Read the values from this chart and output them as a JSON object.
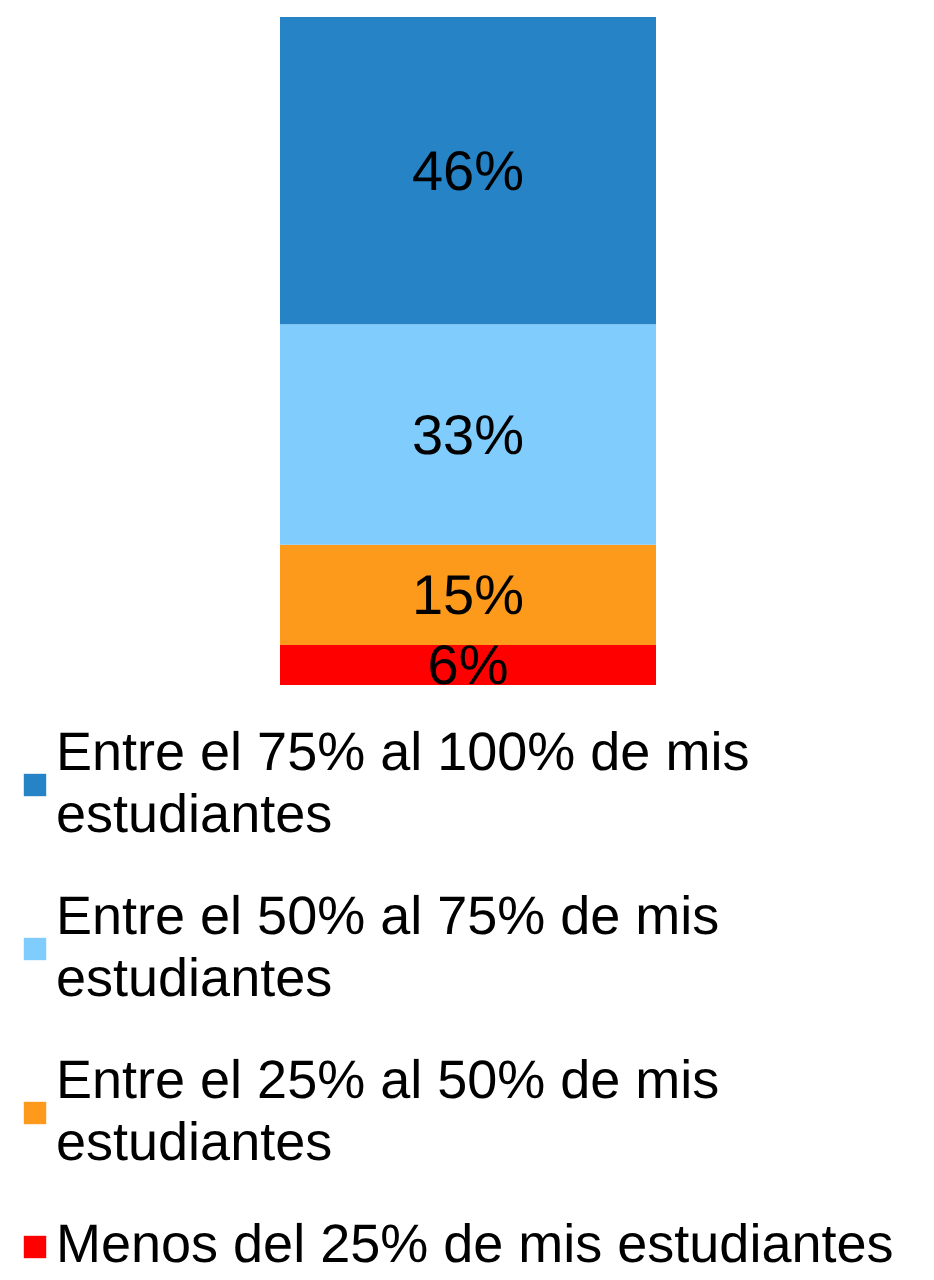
{
  "chart_data": {
    "type": "bar",
    "stacked": true,
    "categories": [
      null
    ],
    "legend": "bottom",
    "data_labels": true,
    "series": [
      {
        "name": "Menos del 25% de mis estudiantes",
        "color": "#fe0000",
        "values": [
          6
        ],
        "value_labels": [
          "6%"
        ]
      },
      {
        "name": "Entre el 25% al 50% de mis estudiantes",
        "color": "#fe9a1b",
        "values": [
          15
        ],
        "value_labels": [
          "15%"
        ]
      },
      {
        "name": "Entre el 50% al 75% de mis estudiantes",
        "color": "#7fccfd",
        "values": [
          33
        ],
        "value_labels": [
          "33%"
        ]
      },
      {
        "name": "Entre el 75% al 100% de mis estudiantes",
        "color": "#2683c6",
        "values": [
          46
        ],
        "value_labels": [
          "46%"
        ]
      }
    ]
  }
}
